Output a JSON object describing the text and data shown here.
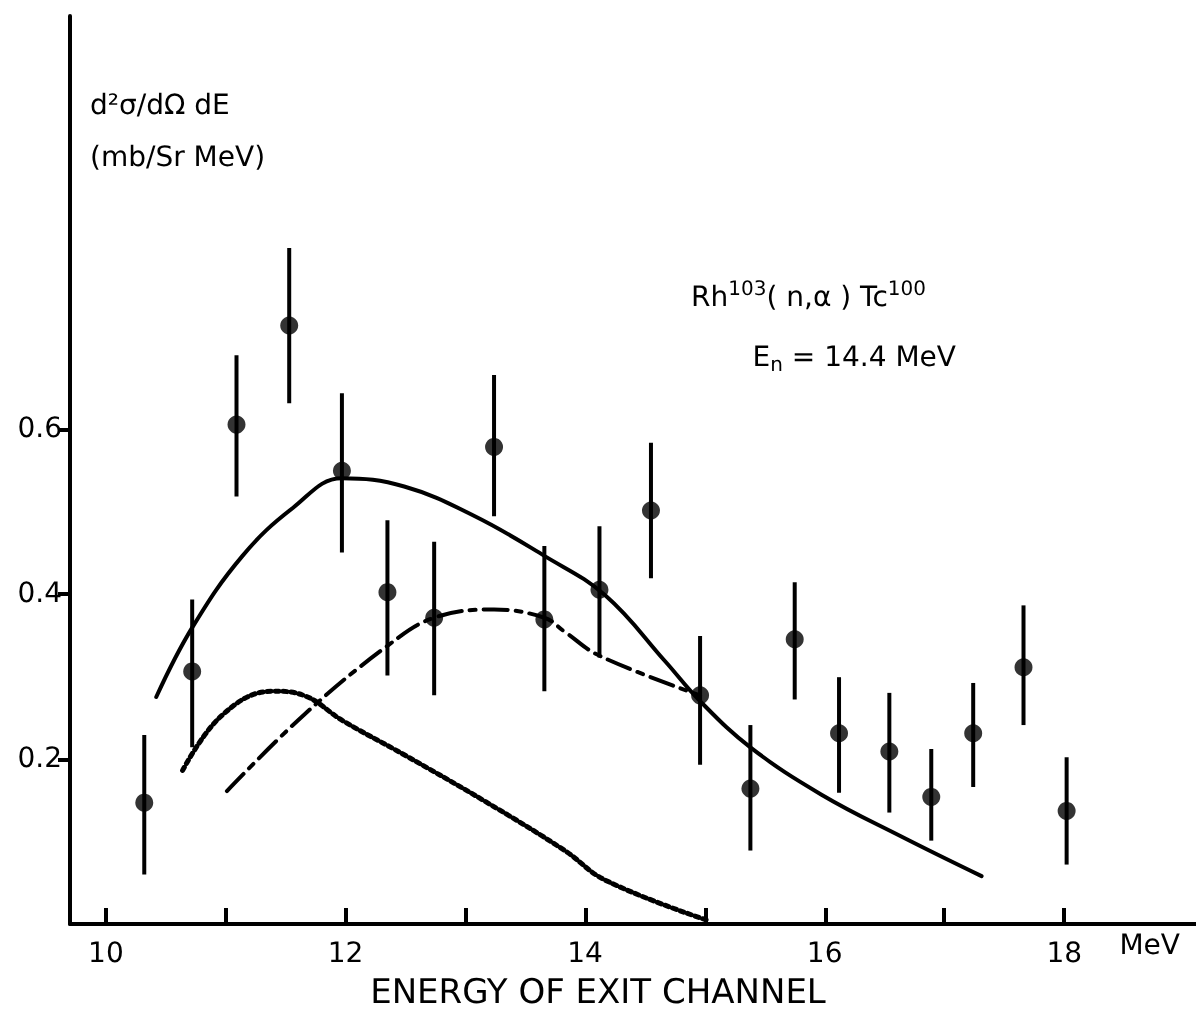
{
  "chart_data": {
    "type": "scatter",
    "xlabel": "ENERGY OF EXIT CHANNEL",
    "ylabel": "d²σ/dΩ dE (mb/Sr MeV)",
    "annotations": [
      "Rh$^{103}$( n,α ) Tc$^{100}$",
      "E$_{n}$ = 14.4 MeV",
      "MeV"
    ],
    "xlim": [
      9.7,
      19.1
    ],
    "ylim": [
      0,
      1.1
    ],
    "xticks": [
      10,
      {
        "value": 11,
        "label": null
      },
      12,
      {
        "value": 13,
        "label": null
      },
      14,
      {
        "value": 15,
        "label": null
      },
      16,
      {
        "value": 17,
        "label": null
      },
      18
    ],
    "yticks": [
      0.2,
      0.4,
      0.6
    ],
    "grid": false,
    "series": [
      {
        "color": "#000000",
        "marker": "circle",
        "x": [
          10.32,
          10.72,
          11.09,
          11.53,
          11.97,
          12.35,
          12.74,
          13.24,
          13.66,
          14.12,
          14.55,
          14.96,
          15.38,
          15.75,
          16.12,
          16.54,
          16.89,
          17.24,
          17.66,
          18.02
        ],
        "values": [
          0.147,
          0.306,
          0.605,
          0.725,
          0.549,
          0.402,
          0.371,
          0.578,
          0.369,
          0.405,
          0.501,
          0.277,
          0.164,
          0.345,
          0.231,
          0.209,
          0.154,
          0.231,
          0.311,
          0.137
        ],
        "errors": [
          [
            0.06,
            0.229
          ],
          [
            0.214,
            0.393
          ],
          [
            0.518,
            0.689
          ],
          [
            0.631,
            0.819
          ],
          [
            0.45,
            0.643
          ],
          [
            0.301,
            0.489
          ],
          [
            0.277,
            0.463
          ],
          [
            0.494,
            0.665
          ],
          [
            0.282,
            0.458
          ],
          [
            0.323,
            0.482
          ],
          [
            0.419,
            0.583
          ],
          [
            0.193,
            0.349
          ],
          [
            0.089,
            0.241
          ],
          [
            0.272,
            0.414
          ],
          [
            0.159,
            0.299
          ],
          [
            0.135,
            0.28
          ],
          [
            0.101,
            0.212
          ],
          [
            0.166,
            0.292
          ],
          [
            0.241,
            0.386
          ],
          [
            0.072,
            0.202
          ]
        ]
      },
      {
        "type": "line",
        "color": "#000000",
        "marker": "none",
        "line_style": "solid",
        "x": [
          10.42,
          10.72,
          11.14,
          11.56,
          11.97,
          12.49,
          13.08,
          13.66,
          14.17,
          14.67,
          14.96,
          15.38,
          15.97,
          16.64,
          17.31
        ],
        "values": [
          0.275,
          0.359,
          0.446,
          0.504,
          0.54,
          0.53,
          0.494,
          0.446,
          0.398,
          0.318,
          0.27,
          0.214,
          0.157,
          0.106,
          0.058
        ]
      },
      {
        "type": "line",
        "color": "#000000",
        "marker": "none",
        "line_style": "dashed",
        "x": [
          11.01,
          11.65,
          12.35,
          12.74,
          13.24,
          13.66,
          13.83,
          14.12,
          14.96
        ],
        "values": [
          0.161,
          0.253,
          0.337,
          0.371,
          0.381,
          0.371,
          0.354,
          0.325,
          0.277
        ]
      },
      {
        "type": "line",
        "color": "#000000",
        "marker": "none",
        "line_style": "dotted",
        "x": [
          10.64,
          10.97,
          11.39,
          11.65,
          11.98,
          12.49,
          13.16,
          13.83,
          14.17,
          15.01
        ],
        "values": [
          0.186,
          0.253,
          0.282,
          0.277,
          0.246,
          0.205,
          0.149,
          0.089,
          0.053,
          0.005
        ]
      }
    ]
  }
}
